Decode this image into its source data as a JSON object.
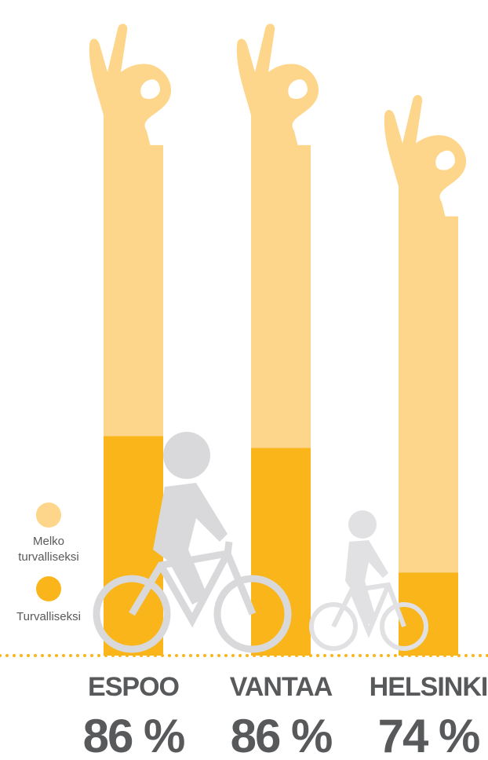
{
  "chart_data": {
    "type": "stacked-bar",
    "categories": [
      "ESPOO",
      "VANTAA",
      "HELSINKI"
    ],
    "series": [
      {
        "name": "Turvalliseksi",
        "color": "#f9b51a",
        "values": [
          37,
          35,
          14
        ]
      },
      {
        "name": "Melko turvalliseksi",
        "color": "#fdd68b",
        "values": [
          49,
          51,
          60
        ]
      }
    ],
    "totals": [
      86,
      86,
      74
    ],
    "total_labels": [
      "86 %",
      "86 %",
      "74 %"
    ]
  }
}
